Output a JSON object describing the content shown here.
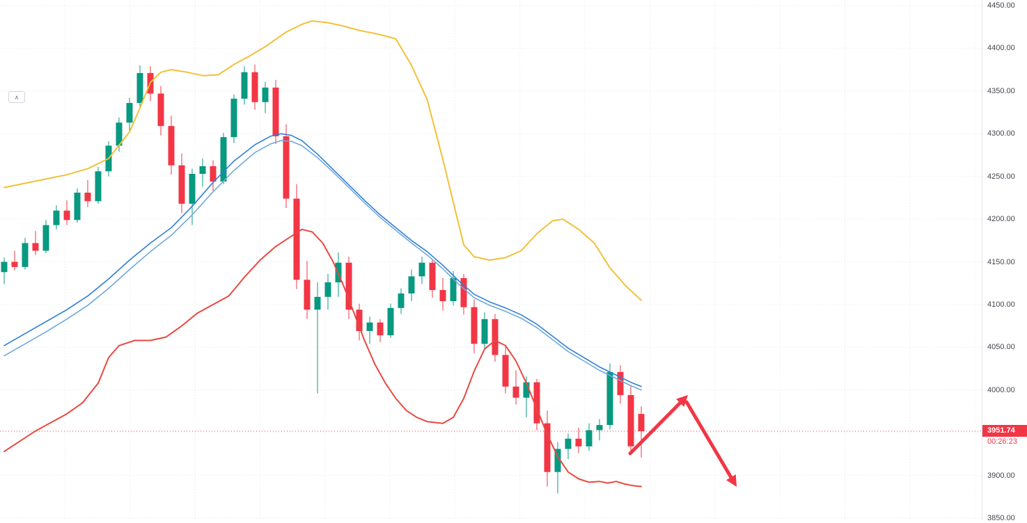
{
  "icons": {
    "chevron_up": "∧"
  },
  "price_scale": {
    "labels": [
      "4450.00",
      "4400.00",
      "4350.00",
      "4300.00",
      "4250.00",
      "4200.00",
      "4150.00",
      "4100.00",
      "4050.00",
      "4000.00",
      "3950.00",
      "3900.00",
      "3850.00"
    ],
    "price_label": {
      "value": "3951.74",
      "countdown": "00:26:23",
      "color": "#f23645"
    }
  },
  "chart_data": {
    "type": "candlestick",
    "title": "",
    "ylim": [
      3850,
      4450
    ],
    "grid": {
      "h_step": 50,
      "v_line_count": 15,
      "v_line_spacing": 93.33
    },
    "colors": {
      "up": "#089981",
      "down": "#f23645",
      "grid": "#e3e6ee",
      "price_line": "#f23645",
      "arrow": "#f23645"
    },
    "last_price": 3951.74,
    "candles": [
      [
        4138,
        4155,
        4124,
        4150
      ],
      [
        4150,
        4163,
        4140,
        4144
      ],
      [
        4144,
        4178,
        4141,
        4172
      ],
      [
        4172,
        4186,
        4158,
        4163
      ],
      [
        4163,
        4199,
        4160,
        4193
      ],
      [
        4193,
        4216,
        4188,
        4210
      ],
      [
        4210,
        4222,
        4193,
        4199
      ],
      [
        4199,
        4236,
        4196,
        4231
      ],
      [
        4231,
        4246,
        4214,
        4221
      ],
      [
        4221,
        4261,
        4218,
        4256
      ],
      [
        4256,
        4291,
        4250,
        4286
      ],
      [
        4286,
        4319,
        4279,
        4313
      ],
      [
        4313,
        4342,
        4301,
        4336
      ],
      [
        4336,
        4380,
        4329,
        4371
      ],
      [
        4371,
        4379,
        4338,
        4347
      ],
      [
        4347,
        4356,
        4298,
        4309
      ],
      [
        4309,
        4321,
        4252,
        4263
      ],
      [
        4263,
        4277,
        4207,
        4218
      ],
      [
        4218,
        4259,
        4193,
        4253
      ],
      [
        4253,
        4271,
        4238,
        4262
      ],
      [
        4262,
        4269,
        4233,
        4244
      ],
      [
        4244,
        4301,
        4241,
        4296
      ],
      [
        4296,
        4346,
        4289,
        4341
      ],
      [
        4341,
        4379,
        4334,
        4372
      ],
      [
        4372,
        4381,
        4328,
        4337
      ],
      [
        4337,
        4361,
        4324,
        4354
      ],
      [
        4354,
        4363,
        4288,
        4297
      ],
      [
        4297,
        4311,
        4213,
        4224
      ],
      [
        4224,
        4241,
        4118,
        4129
      ],
      [
        4129,
        4151,
        4083,
        4094
      ],
      [
        4094,
        4126,
        3996,
        4109
      ],
      [
        4109,
        4136,
        4094,
        4126
      ],
      [
        4126,
        4161,
        4109,
        4149
      ],
      [
        4149,
        4156,
        4083,
        4094
      ],
      [
        4094,
        4101,
        4058,
        4069
      ],
      [
        4069,
        4086,
        4054,
        4079
      ],
      [
        4079,
        4083,
        4056,
        4064
      ],
      [
        4064,
        4101,
        4061,
        4096
      ],
      [
        4096,
        4119,
        4089,
        4113
      ],
      [
        4113,
        4141,
        4104,
        4133
      ],
      [
        4133,
        4156,
        4124,
        4149
      ],
      [
        4149,
        4153,
        4108,
        4117
      ],
      [
        4117,
        4131,
        4093,
        4104
      ],
      [
        4104,
        4139,
        4099,
        4131
      ],
      [
        4131,
        4136,
        4088,
        4097
      ],
      [
        4097,
        4106,
        4043,
        4054
      ],
      [
        4054,
        4091,
        4049,
        4083
      ],
      [
        4083,
        4089,
        4033,
        4041
      ],
      [
        4041,
        4051,
        3996,
        4004
      ],
      [
        4004,
        4023,
        3983,
        3991
      ],
      [
        3991,
        4016,
        3968,
        4009
      ],
      [
        4009,
        4013,
        3953,
        3961
      ],
      [
        3961,
        3976,
        3887,
        3904
      ],
      [
        3904,
        3939,
        3879,
        3931
      ],
      [
        3931,
        3949,
        3919,
        3943
      ],
      [
        3943,
        3956,
        3926,
        3934
      ],
      [
        3934,
        3961,
        3929,
        3953
      ],
      [
        3953,
        3966,
        3941,
        3959
      ],
      [
        3959,
        4031,
        3954,
        4021
      ],
      [
        4021,
        4029,
        3984,
        3994
      ],
      [
        3994,
        4006,
        3924,
        3934
      ],
      [
        3972,
        3981,
        3921,
        3951.74
      ]
    ],
    "overlays": [
      {
        "name": "upper-band",
        "color": "#f2c037",
        "width": 2,
        "points": [
          [
            0,
            4237
          ],
          [
            2,
            4242
          ],
          [
            4,
            4247
          ],
          [
            6,
            4252
          ],
          [
            8,
            4259
          ],
          [
            10,
            4271
          ],
          [
            12,
            4302
          ],
          [
            13,
            4330
          ],
          [
            14,
            4360
          ],
          [
            15,
            4372
          ],
          [
            16,
            4375
          ],
          [
            17.5,
            4372
          ],
          [
            19,
            4368
          ],
          [
            20.5,
            4369
          ],
          [
            22,
            4381
          ],
          [
            23.5,
            4391
          ],
          [
            25,
            4402
          ],
          [
            27,
            4419
          ],
          [
            28.5,
            4428
          ],
          [
            29.5,
            4432
          ],
          [
            31,
            4430
          ],
          [
            32.5,
            4426
          ],
          [
            34,
            4421
          ],
          [
            36,
            4416
          ],
          [
            37.5,
            4411
          ],
          [
            39,
            4380
          ],
          [
            40.5,
            4340
          ],
          [
            42,
            4270
          ],
          [
            43,
            4220
          ],
          [
            44,
            4170
          ],
          [
            45,
            4156
          ],
          [
            46.5,
            4152
          ],
          [
            48,
            4155
          ],
          [
            49.5,
            4163
          ],
          [
            51,
            4183
          ],
          [
            52.5,
            4198
          ],
          [
            53.5,
            4200
          ],
          [
            55,
            4188
          ],
          [
            56.5,
            4172
          ],
          [
            58,
            4143
          ],
          [
            59.5,
            4122
          ],
          [
            61,
            4105
          ]
        ]
      },
      {
        "name": "ma-fast",
        "color": "#2f7ed8",
        "width": 1.6,
        "points": [
          [
            0,
            4052
          ],
          [
            2,
            4066
          ],
          [
            4,
            4080
          ],
          [
            6,
            4094
          ],
          [
            8,
            4110
          ],
          [
            10,
            4130
          ],
          [
            12,
            4152
          ],
          [
            14,
            4172
          ],
          [
            16,
            4190
          ],
          [
            18,
            4215
          ],
          [
            20,
            4243
          ],
          [
            22,
            4268
          ],
          [
            24,
            4287
          ],
          [
            25.5,
            4297
          ],
          [
            26.5,
            4300
          ],
          [
            27.5,
            4298
          ],
          [
            28.5,
            4292
          ],
          [
            30,
            4276
          ],
          [
            31.5,
            4258
          ],
          [
            33,
            4240
          ],
          [
            34.5,
            4222
          ],
          [
            36,
            4205
          ],
          [
            37.5,
            4190
          ],
          [
            39,
            4175
          ],
          [
            40.5,
            4162
          ],
          [
            42,
            4146
          ],
          [
            43.5,
            4128
          ],
          [
            45,
            4112
          ],
          [
            46.5,
            4103
          ],
          [
            48,
            4096
          ],
          [
            49.5,
            4088
          ],
          [
            51,
            4077
          ],
          [
            52.5,
            4063
          ],
          [
            54,
            4049
          ],
          [
            55.5,
            4038
          ],
          [
            57,
            4027
          ],
          [
            58.5,
            4018
          ],
          [
            60,
            4009
          ],
          [
            61,
            4004
          ]
        ]
      },
      {
        "name": "ma-slow",
        "color": "#6fa8dc",
        "width": 1.6,
        "points": [
          [
            0,
            4040
          ],
          [
            2,
            4054
          ],
          [
            4,
            4068
          ],
          [
            6,
            4083
          ],
          [
            8,
            4099
          ],
          [
            10,
            4119
          ],
          [
            12,
            4141
          ],
          [
            14,
            4162
          ],
          [
            16,
            4181
          ],
          [
            18,
            4205
          ],
          [
            20,
            4232
          ],
          [
            22,
            4257
          ],
          [
            24,
            4278
          ],
          [
            25.5,
            4288
          ],
          [
            26.5,
            4292
          ],
          [
            27.5,
            4291
          ],
          [
            28.5,
            4286
          ],
          [
            30,
            4272
          ],
          [
            31.5,
            4255
          ],
          [
            33,
            4237
          ],
          [
            34.5,
            4219
          ],
          [
            36,
            4202
          ],
          [
            37.5,
            4187
          ],
          [
            39,
            4172
          ],
          [
            40.5,
            4158
          ],
          [
            42,
            4142
          ],
          [
            43.5,
            4124
          ],
          [
            45,
            4108
          ],
          [
            46.5,
            4099
          ],
          [
            48,
            4092
          ],
          [
            49.5,
            4084
          ],
          [
            51,
            4073
          ],
          [
            52.5,
            4059
          ],
          [
            54,
            4045
          ],
          [
            55.5,
            4034
          ],
          [
            57,
            4023
          ],
          [
            58.5,
            4014
          ],
          [
            60,
            4005
          ],
          [
            61,
            4000
          ]
        ]
      },
      {
        "name": "lower-band",
        "color": "#e8483f",
        "width": 2,
        "points": [
          [
            0,
            3928
          ],
          [
            1.5,
            3940
          ],
          [
            3,
            3952
          ],
          [
            4.5,
            3962
          ],
          [
            6,
            3972
          ],
          [
            7.5,
            3985
          ],
          [
            9,
            4008
          ],
          [
            10,
            4038
          ],
          [
            11,
            4052
          ],
          [
            12.5,
            4058
          ],
          [
            14,
            4058
          ],
          [
            15.5,
            4062
          ],
          [
            17,
            4075
          ],
          [
            18.5,
            4090
          ],
          [
            20,
            4100
          ],
          [
            21.5,
            4110
          ],
          [
            23,
            4132
          ],
          [
            24.5,
            4152
          ],
          [
            26,
            4168
          ],
          [
            27.5,
            4180
          ],
          [
            28.5,
            4188
          ],
          [
            29.5,
            4185
          ],
          [
            30.5,
            4172
          ],
          [
            31.5,
            4150
          ],
          [
            32.5,
            4122
          ],
          [
            33.5,
            4090
          ],
          [
            34.5,
            4058
          ],
          [
            35.5,
            4030
          ],
          [
            36.5,
            4008
          ],
          [
            37.5,
            3990
          ],
          [
            38.5,
            3976
          ],
          [
            39.5,
            3968
          ],
          [
            40.5,
            3963
          ],
          [
            42,
            3961
          ],
          [
            43,
            3968
          ],
          [
            44,
            3990
          ],
          [
            45,
            4022
          ],
          [
            46,
            4048
          ],
          [
            47,
            4058
          ],
          [
            48,
            4052
          ],
          [
            49,
            4034
          ],
          [
            50,
            4008
          ],
          [
            51,
            3978
          ],
          [
            52,
            3948
          ],
          [
            53,
            3922
          ],
          [
            54,
            3904
          ],
          [
            55,
            3896
          ],
          [
            56,
            3892
          ],
          [
            57,
            3893
          ],
          [
            57.8,
            3891
          ],
          [
            58.6,
            3893
          ],
          [
            59.4,
            3890
          ],
          [
            60.2,
            3888
          ],
          [
            61,
            3887
          ]
        ]
      }
    ],
    "annotations": {
      "arrows": [
        {
          "from": [
            905,
            652
          ],
          "to": [
            988,
            568
          ]
        },
        {
          "from": [
            986,
            578
          ],
          "to": [
            1058,
            700
          ]
        }
      ]
    }
  }
}
